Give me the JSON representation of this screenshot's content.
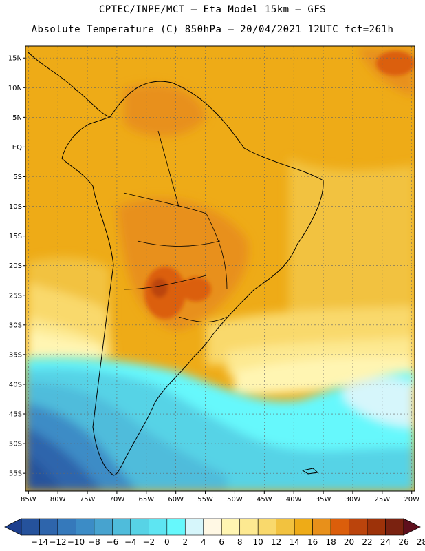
{
  "header": {
    "line1": "CPTEC/INPE/MCT –  Eta Model 15km – GFS",
    "line2": "Absolute Temperature (C) 850hPa – 20/04/2021 12UTC fct=261h"
  },
  "map": {
    "lat_labels": [
      "15N",
      "10N",
      "5N",
      "EQ",
      "5S",
      "10S",
      "15S",
      "20S",
      "25S",
      "30S",
      "35S",
      "40S",
      "45S",
      "50S",
      "55S"
    ],
    "lon_labels": [
      "85W",
      "80W",
      "75W",
      "70W",
      "65W",
      "60W",
      "55W",
      "50W",
      "45W",
      "40W",
      "35W",
      "30W",
      "25W",
      "20W"
    ],
    "lat_range": [
      17,
      -58
    ],
    "lon_range": [
      -85.5,
      -19.5
    ]
  },
  "colorbar": {
    "labels": [
      "-14",
      "-12",
      "-10",
      "-8",
      "-6",
      "-4",
      "-2",
      "0",
      "2",
      "4",
      "6",
      "8",
      "10",
      "12",
      "14",
      "16",
      "18",
      "20",
      "22",
      "24",
      "26",
      "28"
    ],
    "colors": [
      "#1d3f8e",
      "#25529c",
      "#2e65ac",
      "#3579bb",
      "#3c8cc6",
      "#47a3cf",
      "#4fbcdb",
      "#57d3e6",
      "#5ee5f2",
      "#66f8fc",
      "#d6f6fb",
      "#fff8e4",
      "#fff5b2",
      "#fde991",
      "#f9d96c",
      "#f2c23f",
      "#eeab17",
      "#e8901a",
      "#db5e0b",
      "#bb440c",
      "#9d3209",
      "#7a2210",
      "#5e0f1d"
    ]
  }
}
